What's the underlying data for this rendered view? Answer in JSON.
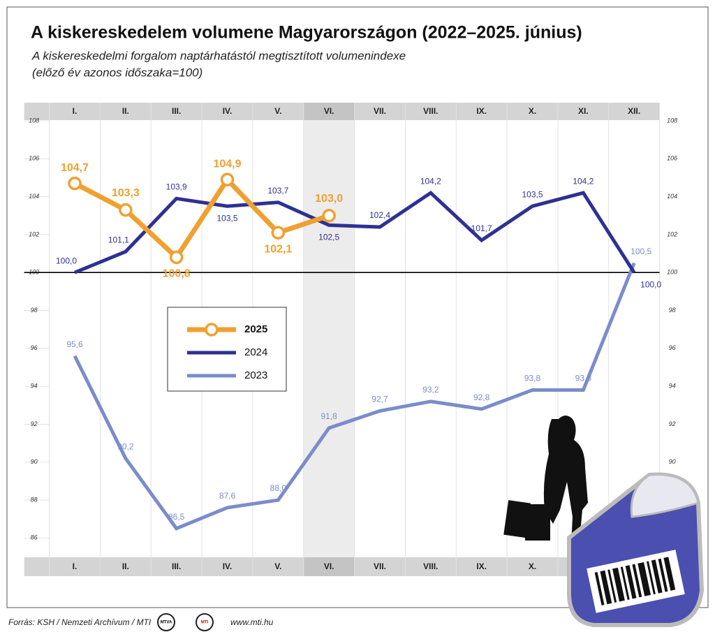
{
  "chart_data": {
    "type": "line",
    "title": "A kiskereskedelem volumene Magyarországon (2022–2025. június)",
    "subtitle": [
      "A kiskereskedelmi forgalom naptárhatástól megtisztított volumenindexe",
      "(előző év azonos időszaka=100)"
    ],
    "categories": [
      "I.",
      "II.",
      "III.",
      "IV.",
      "V.",
      "VI.",
      "VII.",
      "VIII.",
      "IX.",
      "X.",
      "XI.",
      "XII."
    ],
    "highlight_category": 5,
    "ylim": [
      85,
      108
    ],
    "yticks": [
      86,
      88,
      90,
      92,
      94,
      96,
      98,
      100,
      102,
      104,
      106,
      108
    ],
    "reference_line": 100,
    "series": [
      {
        "name": "2025",
        "color": "#f0a030",
        "markers": true,
        "values": [
          104.7,
          103.3,
          100.8,
          104.9,
          102.1,
          103.0,
          null,
          null,
          null,
          null,
          null,
          null
        ],
        "value_labels": [
          "104,7",
          "103,3",
          "100,8",
          "104,9",
          "102,1",
          "103,0",
          null,
          null,
          null,
          null,
          null,
          null
        ]
      },
      {
        "name": "2024",
        "color": "#2e3192",
        "markers": false,
        "values": [
          100.0,
          101.1,
          103.9,
          103.5,
          103.7,
          102.5,
          102.4,
          104.2,
          101.7,
          103.5,
          104.2,
          100.0
        ],
        "value_labels": [
          "100,0",
          "101,1",
          "103,9",
          "103,5",
          "103,7",
          "102,5",
          "102,4",
          "104,2",
          "101,7",
          "103,5",
          "104,2",
          "100,0"
        ]
      },
      {
        "name": "2023",
        "color": "#7b8ccc",
        "markers": false,
        "values": [
          95.6,
          90.2,
          86.5,
          87.6,
          88.0,
          91.8,
          92.7,
          93.2,
          92.8,
          93.8,
          93.8,
          100.5
        ],
        "value_labels": [
          "95,6",
          "90,2",
          "86,5",
          "87,6",
          "88,0",
          "91,8",
          "92,7",
          "93,2",
          "92,8",
          "93,8",
          "93,8",
          "100,5"
        ]
      }
    ],
    "footer": {
      "source": "Forrás: KSH / Nemzeti Archívum / MTI",
      "logos": [
        "MTVA",
        "MTI"
      ],
      "url": "www.mti.hu"
    }
  }
}
